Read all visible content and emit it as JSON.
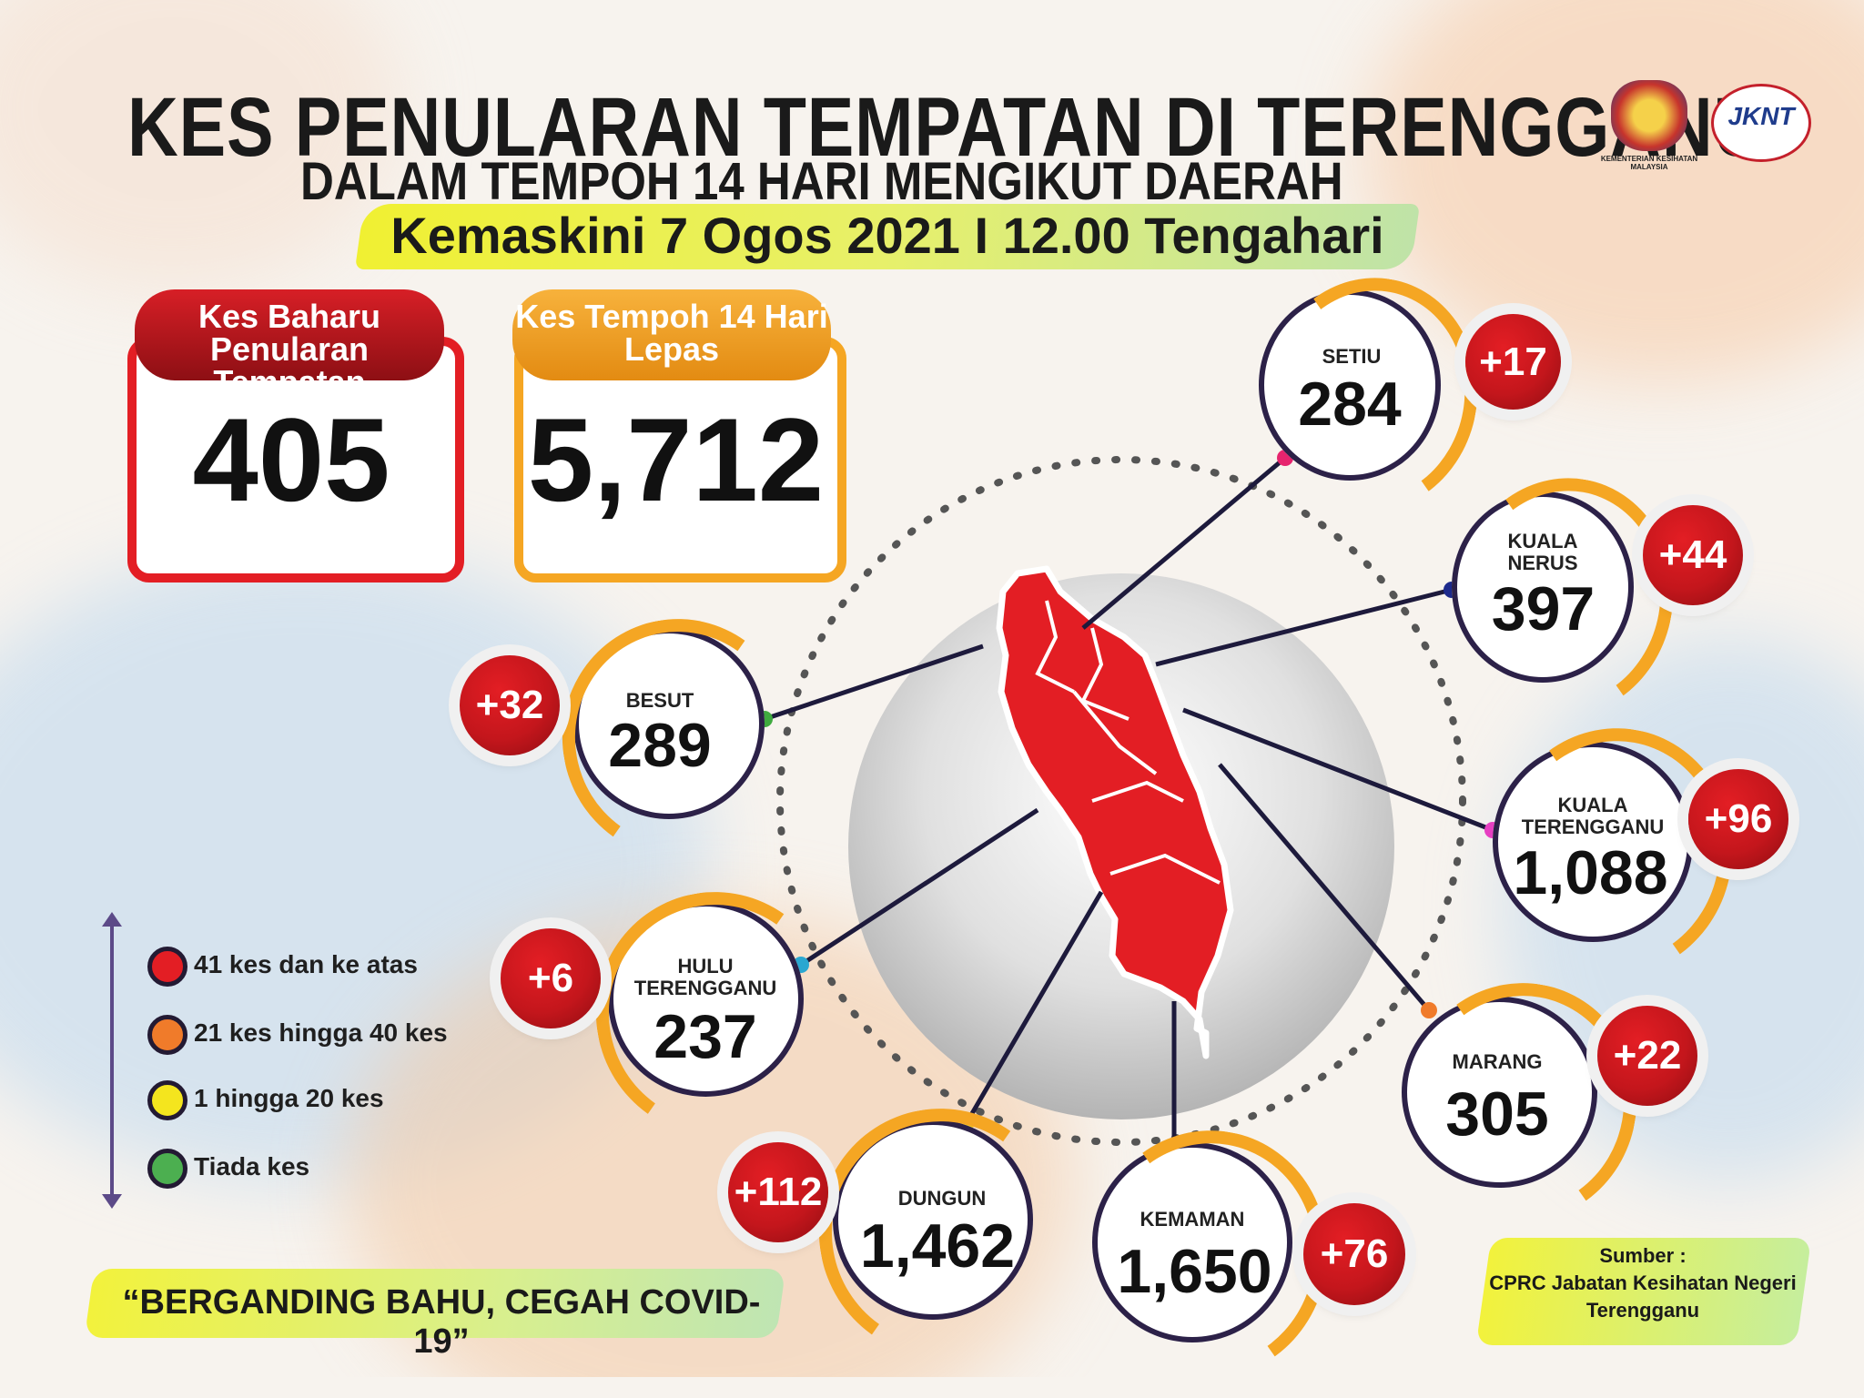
{
  "header": {
    "title_line1": "KES PENULARAN TEMPATAN DI TERENGGANU",
    "title_line2": "DALAM TEMPOH 14 HARI MENGIKUT DAERAH",
    "updated": "Kemaskini 7 Ogos 2021 I 12.00 Tengahari",
    "logo1_caption": "KEMENTERIAN KESIHATAN MALAYSIA",
    "logo2_text": "JKNT"
  },
  "stats": {
    "new_cases": {
      "label": "Kes Baharu Penularan Tempatan",
      "value": "405"
    },
    "period_cases": {
      "label": "Kes Tempoh 14 Hari Lepas",
      "value": "5,712"
    }
  },
  "districts": [
    {
      "name": "SETIU",
      "total": "284",
      "new": "+17"
    },
    {
      "name": "KUALA NERUS",
      "total": "397",
      "new": "+44"
    },
    {
      "name": "BESUT",
      "total": "289",
      "new": "+32"
    },
    {
      "name": "KUALA TERENGGANU",
      "total": "1,088",
      "new": "+96"
    },
    {
      "name": "HULU TERENGGANU",
      "total": "237",
      "new": "+6"
    },
    {
      "name": "MARANG",
      "total": "305",
      "new": "+22"
    },
    {
      "name": "DUNGUN",
      "total": "1,462",
      "new": "+112"
    },
    {
      "name": "KEMAMAN",
      "total": "1,650",
      "new": "+76"
    }
  ],
  "legend": [
    {
      "label": "41 kes dan ke atas",
      "color": "#e31e24"
    },
    {
      "label": "21 kes hingga 40 kes",
      "color": "#f07b2a"
    },
    {
      "label": "1 hingga 20 kes",
      "color": "#f4e51e"
    },
    {
      "label": "Tiada kes",
      "color": "#4caf50"
    }
  ],
  "footer": {
    "motto": "“BERGANDING BAHU, CEGAH COVID-19”",
    "source_label": "Sumber :",
    "source_text": "CPRC Jabatan Kesihatan Negeri Terengganu"
  },
  "colors": {
    "map_fill": "#e31e24",
    "ring_dark": "#2c2148",
    "arc_orange": "#f5a623",
    "badge_red": "#c4161c"
  }
}
